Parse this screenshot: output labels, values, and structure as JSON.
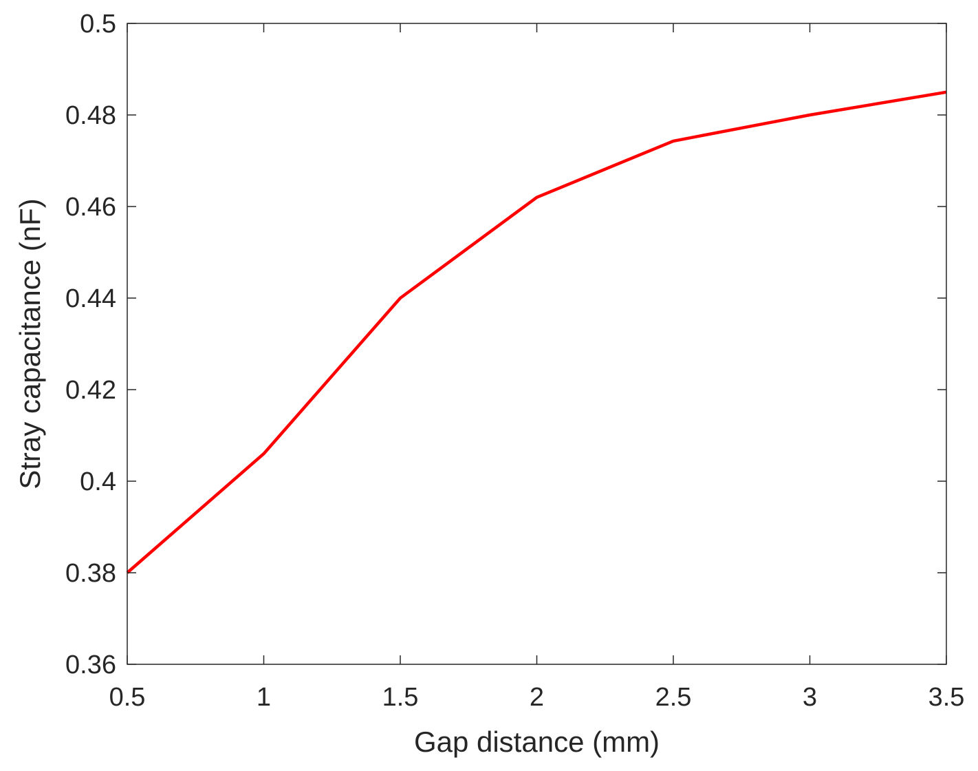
{
  "chart_data": {
    "type": "line",
    "title": "",
    "xlabel": "Gap distance (mm)",
    "ylabel": "Stray capacitance (nF)",
    "xlim": [
      0.5,
      3.5
    ],
    "ylim": [
      0.36,
      0.5
    ],
    "xticks": [
      "0.5",
      "1",
      "1.5",
      "2",
      "2.5",
      "3",
      "3.5"
    ],
    "yticks": [
      "0.36",
      "0.38",
      "0.4",
      "0.42",
      "0.44",
      "0.46",
      "0.48",
      "0.5"
    ],
    "grid": false,
    "legend": "none",
    "series": [
      {
        "color": "#ff0000",
        "x": [
          0.5,
          1.0,
          1.5,
          2.0,
          2.5,
          3.0,
          3.5
        ],
        "y": [
          0.38,
          0.406,
          0.44,
          0.462,
          0.4743,
          0.48,
          0.485
        ]
      }
    ]
  }
}
